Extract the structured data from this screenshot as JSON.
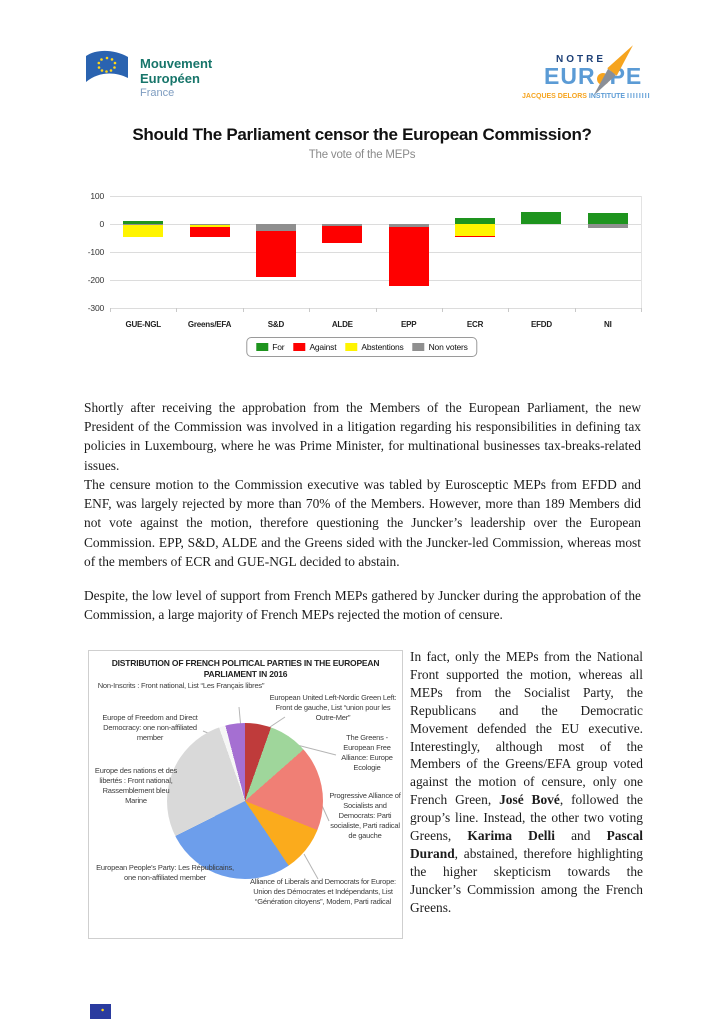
{
  "header": {
    "left_logo": {
      "line1": "Mouvement",
      "line2": "Européen",
      "line3": "France"
    },
    "right_logo": {
      "notre": "NOTRE",
      "eur": "EUR",
      "pe": "PE",
      "jacques_delors": "JACQUES DELORS",
      "institute": "INSTITUTE",
      "tallies": "IIIIIIII"
    }
  },
  "title": "Should The Parliament censor the European Commission?",
  "subtitle": "The vote of the MEPs",
  "chart_data": [
    {
      "type": "bar",
      "title": "The vote of the MEPs",
      "categories": [
        "GUE-NGL",
        "Greens/EFA",
        "S&D",
        "ALDE",
        "EPP",
        "ECR",
        "EFDD",
        "NI"
      ],
      "series": [
        {
          "name": "For",
          "color": "#1e941e",
          "values": [
            10,
            0,
            0,
            0,
            0,
            20,
            42,
            40
          ]
        },
        {
          "name": "Against",
          "color": "#fe0000",
          "values": [
            0,
            -35,
            -165,
            -60,
            -210,
            -6,
            0,
            0
          ]
        },
        {
          "name": "Abstentions",
          "color": "#fff400",
          "values": [
            -40,
            -6,
            0,
            0,
            0,
            -42,
            0,
            0
          ]
        },
        {
          "name": "Non voters",
          "color": "#8f8f8f",
          "values": [
            -5,
            -5,
            -25,
            -8,
            -12,
            0,
            0,
            -15
          ]
        }
      ],
      "ylim": [
        -300,
        100
      ],
      "yticks": [
        "100",
        "0",
        "-100",
        "-200",
        "-300"
      ],
      "legend_position": "bottom",
      "grid": true
    },
    {
      "type": "pie",
      "title": "DISTRIBUTION OF FRENCH POLITICAL PARTIES IN THE EUROPEAN PARLIAMENT IN 2016",
      "slices": [
        {
          "label": "European United Left-Nordic Green Left: Front de gauche, List “union pour les Outre-Mer”",
          "value": 4,
          "color": "#bf3b3b"
        },
        {
          "label": "The Greens - European Free Alliance: Europe Ecologie",
          "value": 6,
          "color": "#9fd69b"
        },
        {
          "label": "Progressive Alliance of Socialists and Democrats: Parti socialiste, Parti radical de gauche",
          "value": 13,
          "color": "#f07f75"
        },
        {
          "label": "Alliance of Liberals and Democrats for Europe: Union des Démocrates et Indépendants, List “Génération citoyens”, Modem, Parti radical",
          "value": 7,
          "color": "#fbab1c"
        },
        {
          "label": "European People’s Party: Les Républicains, one non-affiliated member",
          "value": 20,
          "color": "#6d9eeb"
        },
        {
          "label": "Europe des nations et des libertés : Front national, Rassemblement bleu Marine",
          "value": 20,
          "color": "#d9d9d9"
        },
        {
          "label": "Europe of Freedom and Direct Democracy: one non-affiliated member",
          "value": 1,
          "color": "#f6f6f6"
        },
        {
          "label": "Non-Inscrits : Front national, List “Les Français libres”",
          "value": 3,
          "color": "#a56fd2"
        }
      ]
    }
  ],
  "paragraphs": {
    "p1": "Shortly after receiving the approbation from the Members of the European Parliament, the new President of the Commission was involved in a litigation regarding his responsibilities in defining tax policies in Luxembourg, where he was Prime Minister, for multinational businesses tax-breaks-related issues.",
    "p2": "The censure motion to the Commission executive was tabled by Eurosceptic MEPs from EFDD and ENF, was largely rejected by more than 70% of the Members. However, more than 189 Members did not vote against the motion, therefore questioning the Juncker’s leadership over the European Commission. EPP, S&D, ALDE and the Greens sided with the Juncker-led Commission, whereas most of the members of ECR and GUE-NGL decided to abstain.",
    "p3": "Despite, the low level of support from French MEPs gathered by Juncker during the approbation of the Commission, a large majority of French MEPs rejected the motion of censure."
  },
  "side_text": {
    "segments": [
      {
        "text": "In fact, only the MEPs from the National Front supported the motion, whereas all MEPs from the Socialist Party, the Republicans and the Democratic Movement defended the EU executive. Interestingly, although most of the Members of the Greens/EFA group voted against the motion of censure, only one French Green, "
      },
      {
        "text": "José Bové",
        "bold": true
      },
      {
        "text": ", followed the group’s line. Instead, the other two voting Greens, "
      },
      {
        "text": "Karima Delli",
        "bold": true
      },
      {
        "text": " and "
      },
      {
        "text": "Pascal Durand",
        "bold": true
      },
      {
        "text": ", abstained, therefore highlighting the higher skepticism towards the Juncker’s Commission among the French Greens."
      }
    ]
  },
  "colors": {
    "for": "#1e941e",
    "against": "#fe0000",
    "abstentions": "#fff400",
    "non_voters": "#8f8f8f",
    "brand_teal": "#17756a",
    "brand_blue": "#5b9bd5",
    "brand_orange": "#f6a41f"
  }
}
